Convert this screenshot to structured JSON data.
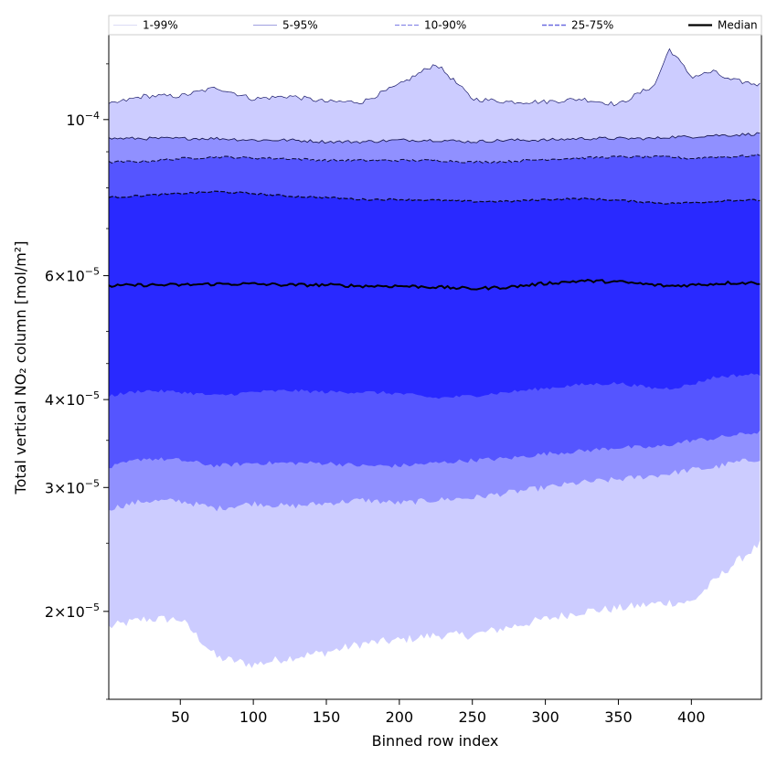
{
  "chart_data": {
    "type": "area",
    "title": "",
    "xlabel": "Binned row index",
    "ylabel": "Total vertical NO₂ column [mol/m²]",
    "x_scale": "linear",
    "y_scale": "log",
    "xlim": [
      1,
      448
    ],
    "ylim": [
      1.5e-05,
      0.000132
    ],
    "x_ticks": [
      50,
      100,
      150,
      200,
      250,
      300,
      350,
      400
    ],
    "y_ticks": [
      {
        "value": 0.0001,
        "mantissa": "",
        "exponent": "−4"
      },
      {
        "value": 6e-05,
        "mantissa": "6",
        "exponent": "−5"
      },
      {
        "value": 4e-05,
        "mantissa": "4",
        "exponent": "−5"
      },
      {
        "value": 3e-05,
        "mantissa": "3",
        "exponent": "−5"
      },
      {
        "value": 2e-05,
        "mantissa": "2",
        "exponent": "−5"
      }
    ],
    "grid": false,
    "legend_placement": "top",
    "band_colors": {
      "1-99%": "#ccccff",
      "5-95%": "#9090ff",
      "10-90%": "#5555ff",
      "25-75%": "#2929ff"
    },
    "median_color": "#000000",
    "legend": [
      "1-99%",
      "5-95%",
      "10-90%",
      "25-75%",
      "Median"
    ],
    "x": [
      1,
      25,
      50,
      75,
      100,
      125,
      150,
      175,
      200,
      225,
      250,
      275,
      300,
      325,
      350,
      375,
      385,
      400,
      415,
      425,
      448
    ],
    "series": [
      {
        "name": "1-99%",
        "kind": "band",
        "low": [
          1.9e-05,
          1.95e-05,
          1.95e-05,
          1.72e-05,
          1.68e-05,
          1.72e-05,
          1.75e-05,
          1.8e-05,
          1.82e-05,
          1.85e-05,
          1.85e-05,
          1.9e-05,
          1.95e-05,
          2e-05,
          2.02e-05,
          2.05e-05,
          2.06e-05,
          2.06e-05,
          2.2e-05,
          2.3e-05,
          2.5e-05
        ],
        "high": [
          0.000105,
          0.000108,
          0.000108,
          0.000111,
          0.000107,
          0.000108,
          0.000106,
          0.000106,
          0.000112,
          0.00012,
          0.000107,
          0.000106,
          0.000106,
          0.000107,
          0.000105,
          0.000112,
          0.000126,
          0.000115,
          0.000117,
          0.000114,
          0.000112
        ]
      },
      {
        "name": "5-95%",
        "kind": "band",
        "low": [
          2.8e-05,
          2.87e-05,
          2.87e-05,
          2.8e-05,
          2.85e-05,
          2.82e-05,
          2.85e-05,
          2.88e-05,
          2.85e-05,
          2.88e-05,
          2.9e-05,
          2.95e-05,
          3e-05,
          3.05e-05,
          3.08e-05,
          3.12e-05,
          3.14e-05,
          3.18e-05,
          3.2e-05,
          3.24e-05,
          3.3e-05
        ],
        "high": [
          9.4e-05,
          9.4e-05,
          9.4e-05,
          9.4e-05,
          9.35e-05,
          9.35e-05,
          9.3e-05,
          9.3e-05,
          9.35e-05,
          9.35e-05,
          9.3e-05,
          9.35e-05,
          9.35e-05,
          9.4e-05,
          9.4e-05,
          9.4e-05,
          9.45e-05,
          9.45e-05,
          9.5e-05,
          9.5e-05,
          9.55e-05
        ]
      },
      {
        "name": "10-90%",
        "kind": "band",
        "low": [
          3.2e-05,
          3.3e-05,
          3.28e-05,
          3.22e-05,
          3.25e-05,
          3.25e-05,
          3.25e-05,
          3.22e-05,
          3.22e-05,
          3.25e-05,
          3.28e-05,
          3.3e-05,
          3.35e-05,
          3.38e-05,
          3.42e-05,
          3.42e-05,
          3.45e-05,
          3.5e-05,
          3.52e-05,
          3.55e-05,
          3.6e-05
        ],
        "high": [
          8.7e-05,
          8.72e-05,
          8.8e-05,
          8.85e-05,
          8.82e-05,
          8.8e-05,
          8.75e-05,
          8.75e-05,
          8.75e-05,
          8.75e-05,
          8.7e-05,
          8.72e-05,
          8.78e-05,
          8.82e-05,
          8.85e-05,
          8.85e-05,
          8.85e-05,
          8.8e-05,
          8.85e-05,
          8.85e-05,
          8.9e-05
        ]
      },
      {
        "name": "25-75%",
        "kind": "band",
        "low": [
          4.05e-05,
          4.12e-05,
          4.1e-05,
          4.05e-05,
          4.1e-05,
          4.12e-05,
          4.1e-05,
          4.1e-05,
          4.08e-05,
          4.02e-05,
          4.05e-05,
          4.1e-05,
          4.15e-05,
          4.2e-05,
          4.22e-05,
          4.15e-05,
          4.15e-05,
          4.2e-05,
          4.3e-05,
          4.32e-05,
          4.35e-05
        ],
        "high": [
          7.75e-05,
          7.8e-05,
          7.85e-05,
          7.9e-05,
          7.85e-05,
          7.78e-05,
          7.75e-05,
          7.7e-05,
          7.7e-05,
          7.68e-05,
          7.65e-05,
          7.65e-05,
          7.7e-05,
          7.72e-05,
          7.68e-05,
          7.62e-05,
          7.6e-05,
          7.62e-05,
          7.65e-05,
          7.68e-05,
          7.68e-05
        ]
      },
      {
        "name": "Median",
        "kind": "line",
        "values": [
          5.8e-05,
          5.82e-05,
          5.82e-05,
          5.84e-05,
          5.84e-05,
          5.82e-05,
          5.82e-05,
          5.8e-05,
          5.8e-05,
          5.78e-05,
          5.75e-05,
          5.78e-05,
          5.85e-05,
          5.9e-05,
          5.88e-05,
          5.82e-05,
          5.8e-05,
          5.82e-05,
          5.84e-05,
          5.86e-05,
          5.86e-05
        ]
      }
    ]
  }
}
